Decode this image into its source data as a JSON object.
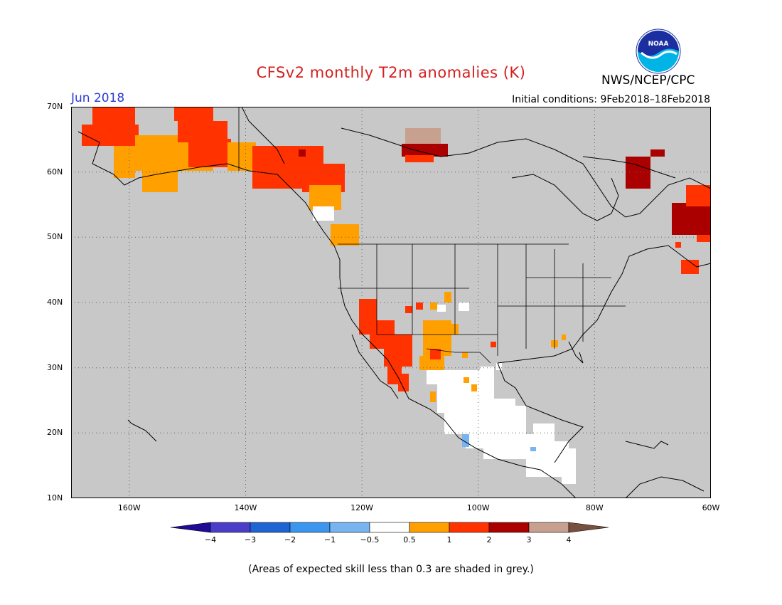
{
  "header": {
    "title": "CFSv2 monthly T2m anomalies (K)",
    "agency": "NWS/NCEP/CPC",
    "logo_text": "NOAA",
    "forecast_month": "Jun 2018",
    "initial_conditions": "Initial conditions: 9Feb2018–18Feb2018"
  },
  "map": {
    "projection": "lat-lon",
    "lon_range": [
      -170,
      -60
    ],
    "lat_range": [
      10,
      70
    ],
    "ocean_color": "#c8c8c8",
    "grid": "dotted",
    "lat_ticks": [
      {
        "value": 70,
        "label": "70N"
      },
      {
        "value": 60,
        "label": "60N"
      },
      {
        "value": 50,
        "label": "50N"
      },
      {
        "value": 40,
        "label": "40N"
      },
      {
        "value": 30,
        "label": "30N"
      },
      {
        "value": 20,
        "label": "20N"
      },
      {
        "value": 10,
        "label": "10N"
      }
    ],
    "lon_ticks": [
      {
        "value": -160,
        "label": "160W"
      },
      {
        "value": -140,
        "label": "140W"
      },
      {
        "value": -120,
        "label": "120W"
      },
      {
        "value": -100,
        "label": "100W"
      },
      {
        "value": -80,
        "label": "80W"
      },
      {
        "value": -60,
        "label": "60W"
      }
    ]
  },
  "legend": {
    "colors": [
      "#1e0a96",
      "#4a3ec8",
      "#1e64d2",
      "#3c96f0",
      "#78b4f0",
      "#ffffff",
      "#ffa000",
      "#ff3200",
      "#aa0000",
      "#c8a090",
      "#785040"
    ],
    "labels": [
      "−4",
      "−3",
      "−2",
      "−1",
      "−0.5",
      "0.5",
      "1",
      "2",
      "3",
      "4"
    ]
  },
  "note": "(Areas of expected skill less than 0.3 are shaded in grey.)",
  "anomaly_regions": [
    {
      "region": "Alaska west/north",
      "level": "1–2",
      "color": "#ff3200"
    },
    {
      "region": "Alaska interior",
      "level": "0.5–1",
      "color": "#ffa000"
    },
    {
      "region": "Yukon / NW Canada",
      "level": "1–2",
      "color": "#ff3200"
    },
    {
      "region": "NW Territories",
      "level": "2–4",
      "color": "#aa0000"
    },
    {
      "region": "Northern Quebec",
      "level": "2–3",
      "color": "#aa0000"
    },
    {
      "region": "Labrador",
      "level": "2–3",
      "color": "#aa0000"
    },
    {
      "region": "Desert Southwest",
      "level": "1–2",
      "color": "#ff3200"
    },
    {
      "region": "Four Corners",
      "level": "0.5–1",
      "color": "#ffa000"
    },
    {
      "region": "Mexico",
      "level": "−0.5–0.5",
      "color": "#ffffff"
    }
  ]
}
